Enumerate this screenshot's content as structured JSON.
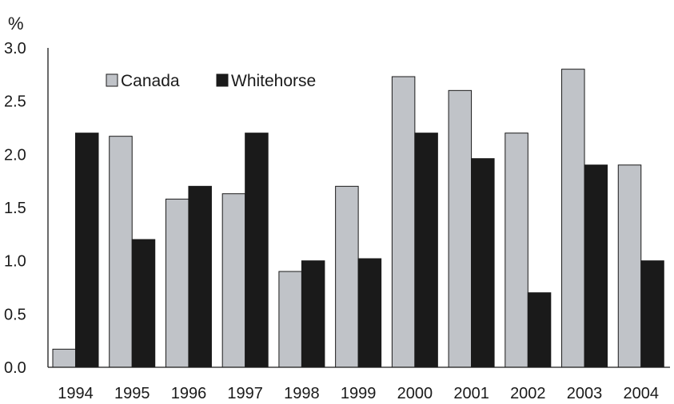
{
  "chart_data": {
    "type": "bar",
    "ylabel": "%",
    "ylim": [
      0,
      3.0
    ],
    "yticks": [
      "0.0",
      "0.5",
      "1.0",
      "1.5",
      "2.0",
      "2.5",
      "3.0"
    ],
    "categories": [
      "1994",
      "1995",
      "1996",
      "1997",
      "1998",
      "1999",
      "2000",
      "2001",
      "2002",
      "2003",
      "2004"
    ],
    "series": [
      {
        "name": "Canada",
        "color": "#c0c3c8",
        "values": [
          0.17,
          2.17,
          1.58,
          1.63,
          0.9,
          1.7,
          2.73,
          2.6,
          2.2,
          2.8,
          1.9
        ]
      },
      {
        "name": "Whitehorse",
        "color": "#1a1a1a",
        "values": [
          2.2,
          1.2,
          1.7,
          2.2,
          1.0,
          1.02,
          2.2,
          1.96,
          0.7,
          1.9,
          1.0
        ]
      }
    ],
    "legend": "top-left",
    "grid": false
  }
}
